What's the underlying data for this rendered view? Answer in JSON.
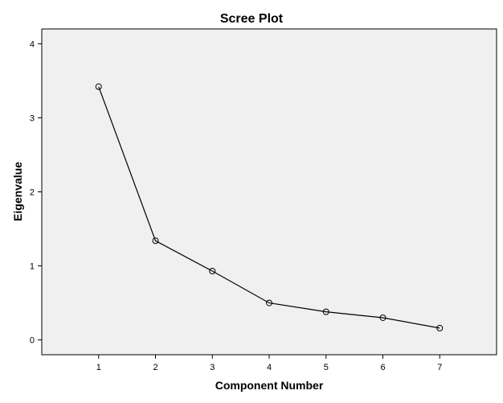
{
  "chart_data": {
    "type": "line",
    "title": "Scree Plot",
    "xlabel": "Component Number",
    "ylabel": "Eigenvalue",
    "x": [
      1,
      2,
      3,
      4,
      5,
      6,
      7
    ],
    "values": [
      3.42,
      1.34,
      0.93,
      0.5,
      0.38,
      0.3,
      0.16
    ],
    "xlim": [
      0,
      8
    ],
    "ylim": [
      -0.2,
      4.2
    ],
    "xticks": [
      "1",
      "2",
      "3",
      "4",
      "5",
      "6",
      "7"
    ],
    "yticks": [
      "0",
      "1",
      "2",
      "3",
      "4"
    ],
    "grid": false,
    "legend": "none",
    "marker": "open-circle",
    "colors": {
      "plot_background": "#f0f0f0",
      "line": "#000000",
      "frame": "#000000"
    }
  }
}
